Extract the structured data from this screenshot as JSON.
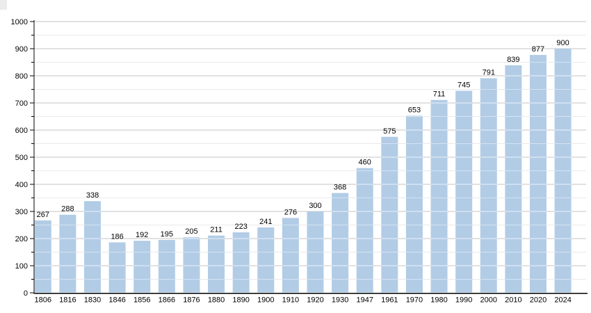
{
  "chart_data": {
    "type": "bar",
    "title": "",
    "categories": [
      "1806",
      "1816",
      "1830",
      "1846",
      "1856",
      "1866",
      "1876",
      "1880",
      "1890",
      "1900",
      "1910",
      "1920",
      "1930",
      "1947",
      "1961",
      "1970",
      "1980",
      "1990",
      "2000",
      "2010",
      "2020",
      "2024"
    ],
    "values": [
      267,
      288,
      338,
      186,
      192,
      195,
      205,
      211,
      223,
      241,
      276,
      300,
      368,
      460,
      575,
      653,
      711,
      745,
      791,
      839,
      877,
      900
    ],
    "bar_labels": [
      "267",
      "288",
      "338",
      "186",
      "192",
      "195",
      "205",
      "211",
      "223",
      "241",
      "276",
      "300",
      "368",
      "460",
      "575",
      "653",
      "711",
      "745",
      "791",
      "839",
      "877",
      "900"
    ],
    "xlabel": "",
    "ylabel": "",
    "ylim": [
      0,
      1000
    ],
    "y_major_step": 100,
    "y_minor_step": 50,
    "y_tick_labels": [
      "0",
      "100",
      "200",
      "300",
      "400",
      "500",
      "600",
      "700",
      "800",
      "900",
      "1000"
    ],
    "grid": "horizontal major+minor, white overlay on bars",
    "legend": "none",
    "colors": {
      "bar_fill": "#b2cce6",
      "major_grid": "#c6c6c6",
      "minor_grid": "#e9e9e9",
      "axis": "#000000",
      "text": "#000000",
      "grid_over_bar": "#ffffff",
      "corner_artifact": "#ececec"
    }
  }
}
